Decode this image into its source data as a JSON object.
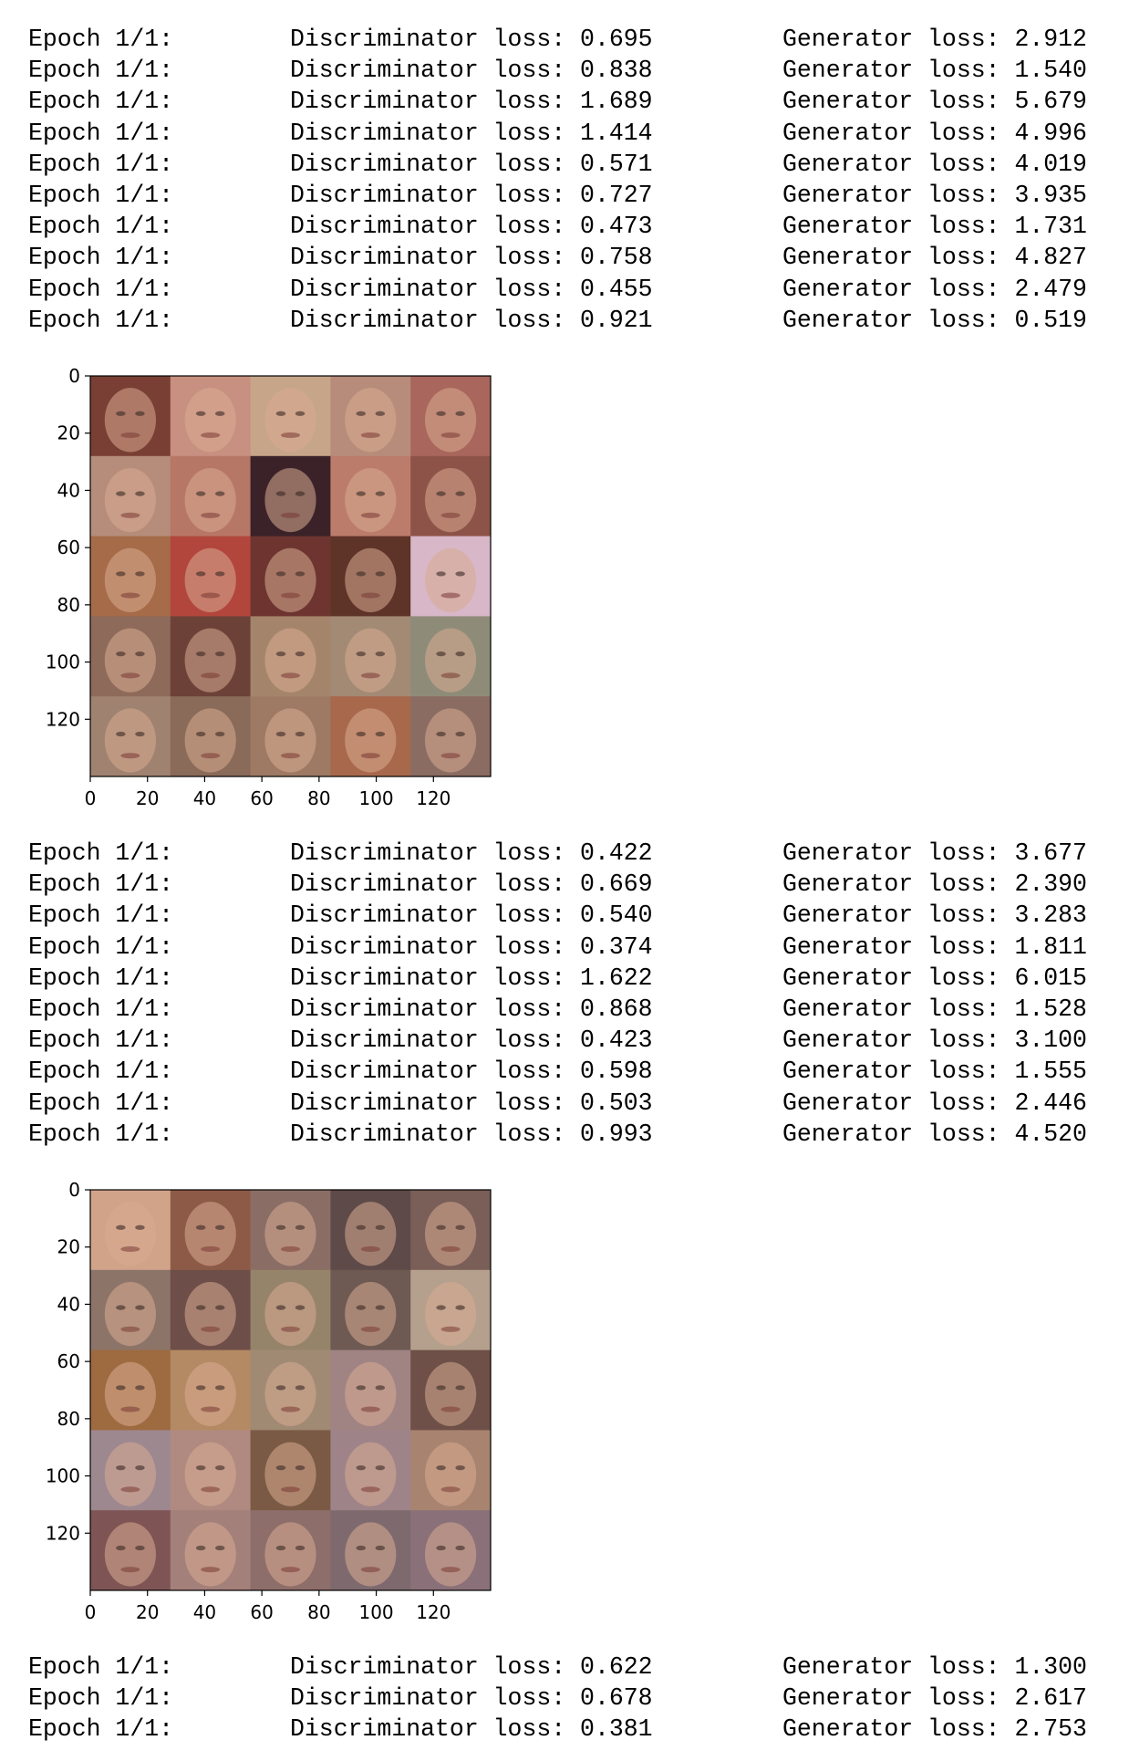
{
  "log_blocks": [
    {
      "lines": [
        {
          "epoch": "Epoch 1/1:",
          "disc": "Discriminator loss: 0.695",
          "gen": "Generator loss: 2.912"
        },
        {
          "epoch": "Epoch 1/1:",
          "disc": "Discriminator loss: 0.838",
          "gen": "Generator loss: 1.540"
        },
        {
          "epoch": "Epoch 1/1:",
          "disc": "Discriminator loss: 1.689",
          "gen": "Generator loss: 5.679"
        },
        {
          "epoch": "Epoch 1/1:",
          "disc": "Discriminator loss: 1.414",
          "gen": "Generator loss: 4.996"
        },
        {
          "epoch": "Epoch 1/1:",
          "disc": "Discriminator loss: 0.571",
          "gen": "Generator loss: 4.019"
        },
        {
          "epoch": "Epoch 1/1:",
          "disc": "Discriminator loss: 0.727",
          "gen": "Generator loss: 3.935"
        },
        {
          "epoch": "Epoch 1/1:",
          "disc": "Discriminator loss: 0.473",
          "gen": "Generator loss: 1.731"
        },
        {
          "epoch": "Epoch 1/1:",
          "disc": "Discriminator loss: 0.758",
          "gen": "Generator loss: 4.827"
        },
        {
          "epoch": "Epoch 1/1:",
          "disc": "Discriminator loss: 0.455",
          "gen": "Generator loss: 2.479"
        },
        {
          "epoch": "Epoch 1/1:",
          "disc": "Discriminator loss: 0.921",
          "gen": "Generator loss: 0.519"
        }
      ]
    },
    {
      "lines": [
        {
          "epoch": "Epoch 1/1:",
          "disc": "Discriminator loss: 0.422",
          "gen": "Generator loss: 3.677"
        },
        {
          "epoch": "Epoch 1/1:",
          "disc": "Discriminator loss: 0.669",
          "gen": "Generator loss: 2.390"
        },
        {
          "epoch": "Epoch 1/1:",
          "disc": "Discriminator loss: 0.540",
          "gen": "Generator loss: 3.283"
        },
        {
          "epoch": "Epoch 1/1:",
          "disc": "Discriminator loss: 0.374",
          "gen": "Generator loss: 1.811"
        },
        {
          "epoch": "Epoch 1/1:",
          "disc": "Discriminator loss: 1.622",
          "gen": "Generator loss: 6.015"
        },
        {
          "epoch": "Epoch 1/1:",
          "disc": "Discriminator loss: 0.868",
          "gen": "Generator loss: 1.528"
        },
        {
          "epoch": "Epoch 1/1:",
          "disc": "Discriminator loss: 0.423",
          "gen": "Generator loss: 3.100"
        },
        {
          "epoch": "Epoch 1/1:",
          "disc": "Discriminator loss: 0.598",
          "gen": "Generator loss: 1.555"
        },
        {
          "epoch": "Epoch 1/1:",
          "disc": "Discriminator loss: 0.503",
          "gen": "Generator loss: 2.446"
        },
        {
          "epoch": "Epoch 1/1:",
          "disc": "Discriminator loss: 0.993",
          "gen": "Generator loss: 4.520"
        }
      ]
    },
    {
      "lines": [
        {
          "epoch": "Epoch 1/1:",
          "disc": "Discriminator loss: 0.622",
          "gen": "Generator loss: 1.300"
        },
        {
          "epoch": "Epoch 1/1:",
          "disc": "Discriminator loss: 0.678",
          "gen": "Generator loss: 2.617"
        },
        {
          "epoch": "Epoch 1/1:",
          "disc": "Discriminator loss: 0.381",
          "gen": "Generator loss: 2.753"
        }
      ]
    }
  ],
  "figures": [
    {
      "x_ticks": [
        "0",
        "20",
        "40",
        "60",
        "80",
        "100",
        "120"
      ],
      "y_ticks": [
        "0",
        "20",
        "40",
        "60",
        "80",
        "100",
        "120"
      ],
      "tiles": [
        [
          "#7a3f34",
          "#c89080",
          "#c7a589",
          "#b88c7a",
          "#a8665c"
        ],
        [
          "#b58d7a",
          "#b77766",
          "#3a2228",
          "#bb7c6c",
          "#8e5348"
        ],
        [
          "#a66b48",
          "#b2463c",
          "#6e3530",
          "#5e3328",
          "#d8b7c8"
        ],
        [
          "#8e6a5a",
          "#6c4238",
          "#a4856c",
          "#a38a75",
          "#8e8c78"
        ],
        [
          "#a08270",
          "#8a6a58",
          "#9e7a64",
          "#a8684c",
          "#8b6c62"
        ]
      ]
    },
    {
      "x_ticks": [
        "0",
        "20",
        "40",
        "60",
        "80",
        "100",
        "120"
      ],
      "y_ticks": [
        "0",
        "20",
        "40",
        "60",
        "80",
        "100",
        "120"
      ],
      "tiles": [
        [
          "#d1a48a",
          "#8e5a48",
          "#8a6e66",
          "#5e4a48",
          "#7a5e58"
        ],
        [
          "#8d7468",
          "#6e4e48",
          "#96846a",
          "#6e5a52",
          "#b4a08c"
        ],
        [
          "#9e6a40",
          "#b48a64",
          "#a08a74",
          "#a08484",
          "#6e5048"
        ],
        [
          "#9e8890",
          "#b08a80",
          "#7a5a44",
          "#9e8488",
          "#a88470"
        ],
        [
          "#7e5454",
          "#a4807a",
          "#8e6e6a",
          "#7e6a6e",
          "#8a7078"
        ]
      ]
    }
  ]
}
